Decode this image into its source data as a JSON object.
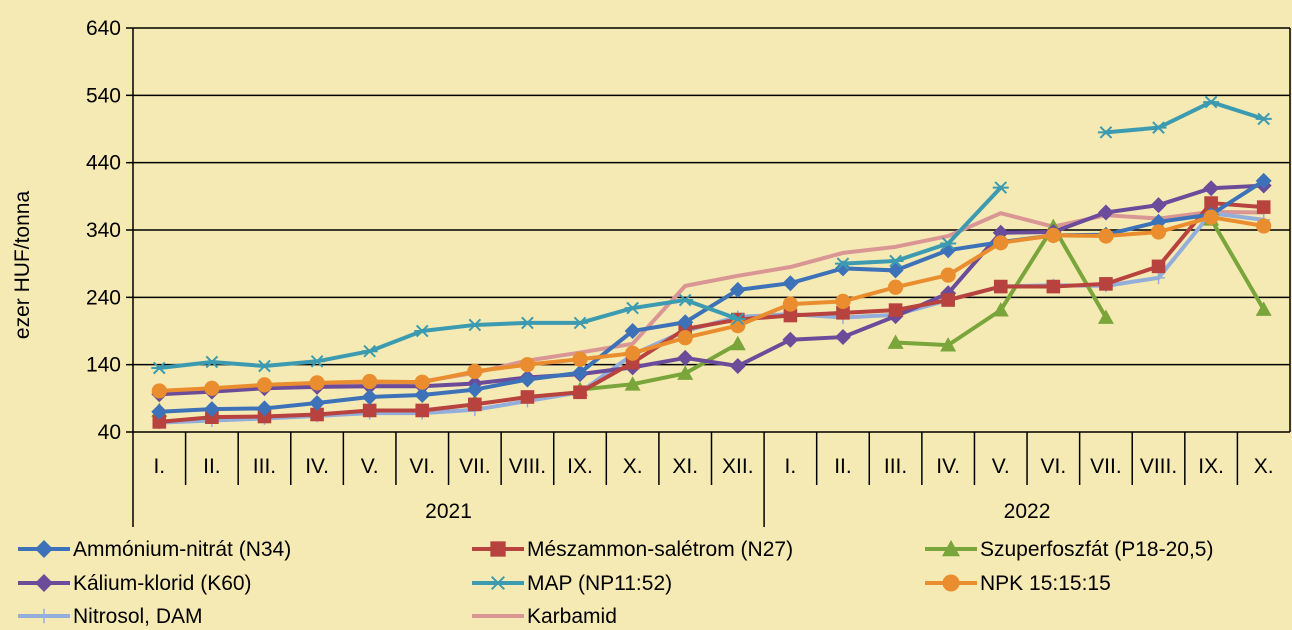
{
  "chart_data": {
    "type": "line",
    "ylabel": "ezer HUF/tonna",
    "ylim": [
      40,
      640
    ],
    "yticks": [
      40,
      140,
      240,
      340,
      440,
      540,
      640
    ],
    "grid": true,
    "legend_position": "bottom",
    "categories": [
      "I.",
      "II.",
      "III.",
      "IV.",
      "V.",
      "VI.",
      "VII.",
      "VIII.",
      "IX.",
      "X.",
      "XI.",
      "XII.",
      "I.",
      "II.",
      "III.",
      "IV.",
      "V.",
      "VI.",
      "VII.",
      "VIII.",
      "IX.",
      "X."
    ],
    "years": [
      {
        "label": "2021",
        "start": 0,
        "end": 11
      },
      {
        "label": "2022",
        "start": 12,
        "end": 21
      }
    ],
    "series": [
      {
        "name": "Ammónium-nitrát (N34)",
        "color": "#3d72b8",
        "marker": "diamond",
        "values": [
          70,
          74,
          75,
          83,
          92,
          95,
          103,
          118,
          128,
          190,
          203,
          251,
          261,
          283,
          280,
          310,
          322,
          332,
          333,
          352,
          363,
          413
        ]
      },
      {
        "name": "Mészammon-salétrom (N27)",
        "color": "#b7423e",
        "marker": "square",
        "values": [
          55,
          62,
          63,
          66,
          72,
          72,
          81,
          92,
          99,
          143,
          193,
          207,
          213,
          217,
          221,
          236,
          256,
          256,
          260,
          286,
          380,
          374
        ]
      },
      {
        "name": "Szuperfoszfát (P18-20,5)",
        "color": "#79a53a",
        "marker": "triangle",
        "values": [
          72,
          null,
          null,
          null,
          null,
          null,
          85,
          null,
          103,
          111,
          127,
          171,
          null,
          null,
          173,
          169,
          221,
          345,
          210,
          null,
          356,
          222
        ]
      },
      {
        "name": "Kálium-klorid (K60)",
        "color": "#6b4c9a",
        "marker": "diamond",
        "values": [
          96,
          100,
          105,
          107,
          108,
          108,
          112,
          121,
          126,
          136,
          150,
          138,
          177,
          181,
          212,
          246,
          336,
          337,
          366,
          377,
          402,
          406
        ]
      },
      {
        "name": "MAP (NP11:52)",
        "color": "#3c9bb0",
        "marker": "star",
        "values": [
          135,
          144,
          138,
          145,
          160,
          190,
          199,
          202,
          202,
          224,
          236,
          208,
          null,
          290,
          294,
          320,
          403,
          null,
          485,
          492,
          530,
          505
        ]
      },
      {
        "name": "NPK 15:15:15",
        "color": "#ea8d2f",
        "marker": "circle",
        "values": [
          101,
          105,
          110,
          113,
          115,
          114,
          130,
          140,
          148,
          157,
          180,
          198,
          230,
          234,
          255,
          273,
          321,
          332,
          331,
          337,
          359,
          346
        ]
      },
      {
        "name": "Nitrosol, DAM",
        "color": "#93aedb",
        "marker": "plus",
        "values": [
          54,
          57,
          60,
          64,
          68,
          68,
          73,
          86,
          99,
          155,
          190,
          211,
          215,
          210,
          214,
          236,
          256,
          258,
          257,
          269,
          365,
          355
        ]
      },
      {
        "name": "Karbamid",
        "color": "#d99695",
        "marker": "none",
        "values": [
          96,
          101,
          106,
          109,
          110,
          115,
          128,
          146,
          158,
          171,
          257,
          272,
          285,
          306,
          315,
          331,
          365,
          345,
          362,
          357,
          367,
          366
        ]
      }
    ]
  }
}
